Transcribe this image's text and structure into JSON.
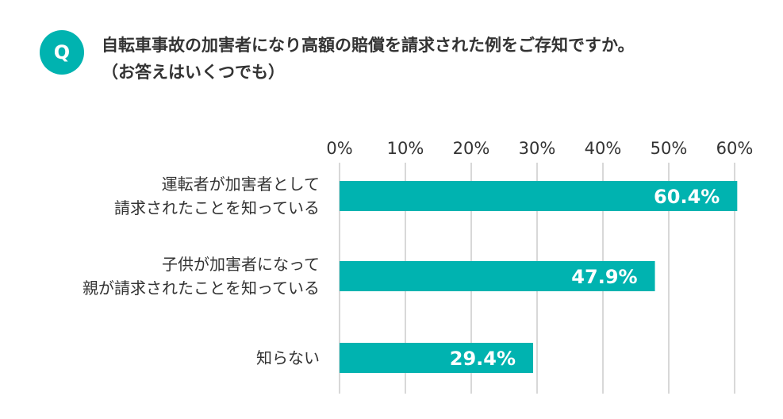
{
  "question": {
    "badge": "Q",
    "line1": "自転車事故の加害者になり高額の賠償を請求された例をご存知ですか。",
    "line2": "（お答えはいくつでも）"
  },
  "colors": {
    "accent": "#00b3b0",
    "grid": "#cccccc",
    "text": "#333333"
  },
  "chart_data": {
    "type": "bar",
    "orientation": "horizontal",
    "title": "",
    "xlabel": "",
    "ylabel": "",
    "xlim": [
      0,
      60
    ],
    "x_ticks": [
      0,
      10,
      20,
      30,
      40,
      50,
      60
    ],
    "x_tick_labels": [
      "0%",
      "10%",
      "20%",
      "30%",
      "40%",
      "50%",
      "60%"
    ],
    "tick_position": "top",
    "grid": true,
    "categories": [
      [
        "運転者が加害者として",
        "請求されたことを知っている"
      ],
      [
        "子供が加害者になって",
        "親が請求されたことを知っている"
      ],
      [
        "知らない"
      ]
    ],
    "values": [
      60.4,
      47.9,
      29.4
    ],
    "data_labels": [
      "60.4%",
      "47.9%",
      "29.4%"
    ]
  }
}
